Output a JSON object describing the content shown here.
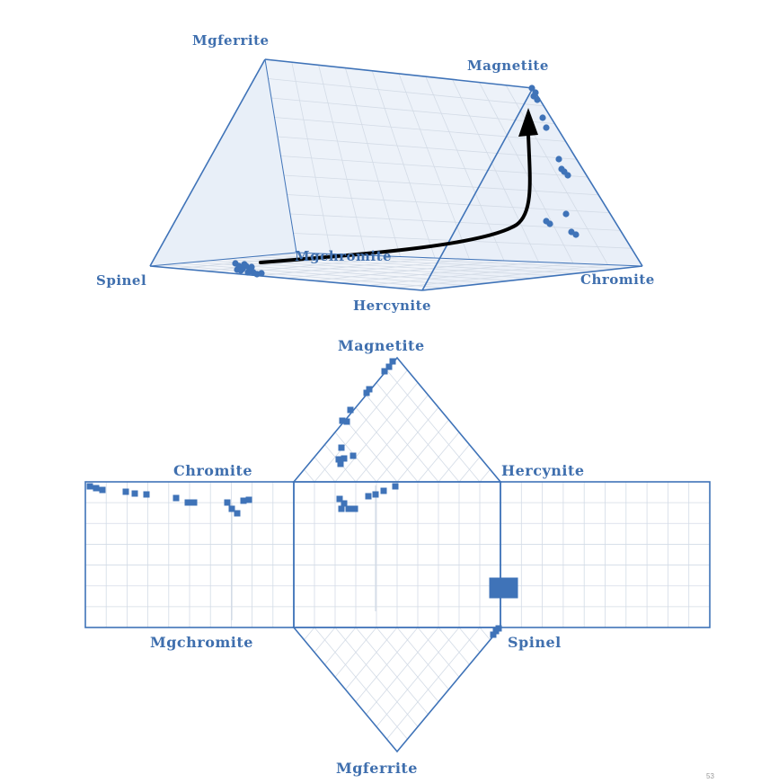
{
  "prism": {
    "labels": {
      "mgferrite": "Mgferrite",
      "magnetite": "Magnetite",
      "spinel": "Spinel",
      "mgchromite": "Mgchromite",
      "hercynite": "Hercynite",
      "chromite": "Chromite"
    }
  },
  "net": {
    "labels": {
      "magnetite": "Magnetite",
      "chromite": "Chromite",
      "hercynite": "Hercynite",
      "mgchromite": "Mgchromite",
      "spinel": "Spinel",
      "mgferrite": "Mgferrite"
    }
  },
  "colors": {
    "frame": "#3f73b8",
    "points": "#3f73b8",
    "grid": "#d3dbe6",
    "face_fill": "#eaf0f8",
    "arrow": "#000000"
  },
  "corner_mark": "53"
}
